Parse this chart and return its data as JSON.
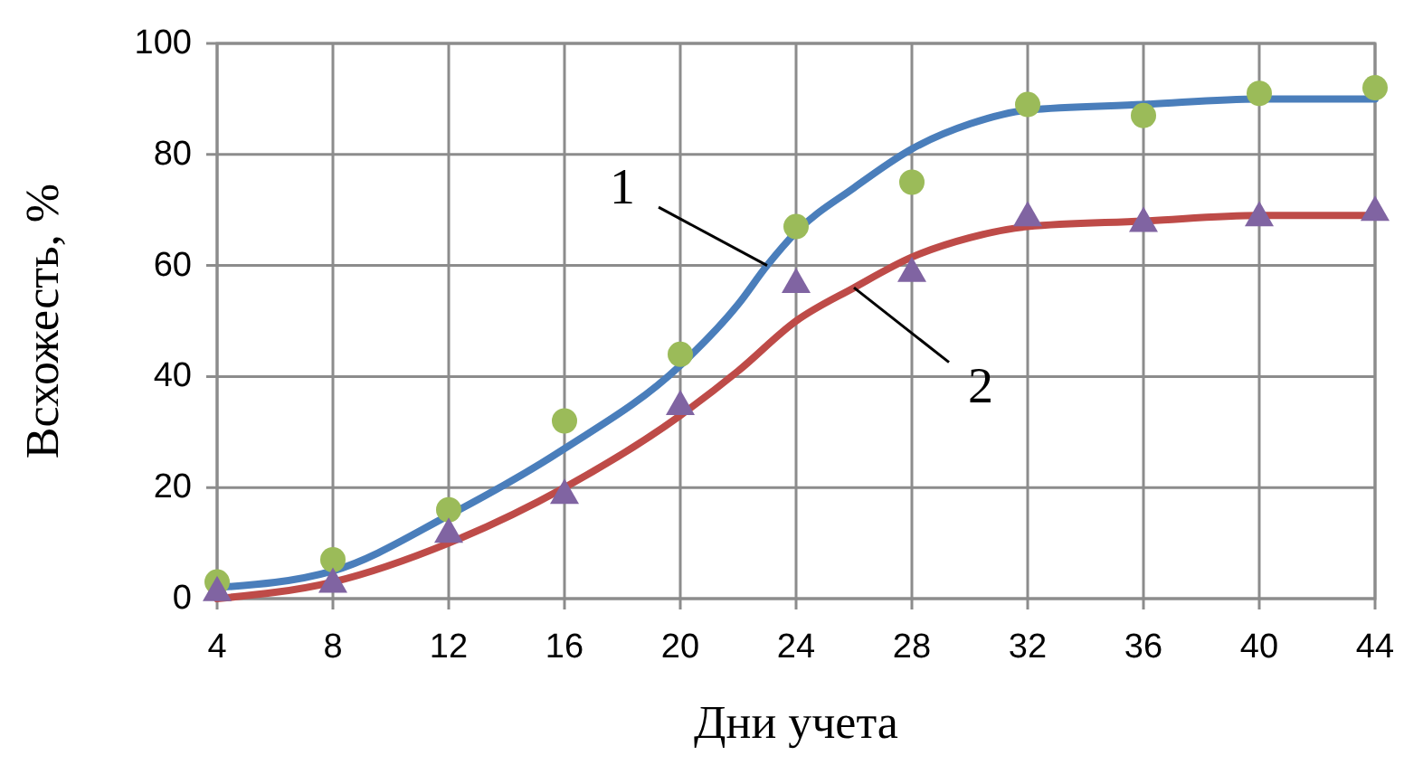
{
  "chart_data": {
    "type": "scatter",
    "xlabel": "Дни учета",
    "ylabel": "Всхожесть, %",
    "xlim": [
      4,
      44
    ],
    "xticks": [
      4,
      8,
      12,
      16,
      20,
      24,
      28,
      32,
      36,
      40,
      44
    ],
    "ylim": [
      0,
      100
    ],
    "yticks": [
      0,
      20,
      40,
      60,
      80,
      100
    ],
    "grid": true,
    "series": [
      {
        "type": "line",
        "color": "#4a7ebb",
        "marker": "none",
        "x": [
          4,
          8,
          12,
          16,
          20,
          22,
          23,
          24,
          26,
          28,
          30,
          32,
          36,
          40,
          44
        ],
        "values": [
          2,
          5,
          15,
          27,
          42,
          53,
          60,
          66,
          74,
          81,
          85.5,
          88,
          89,
          90,
          90
        ]
      },
      {
        "type": "line",
        "color": "#be4b48",
        "marker": "none",
        "x": [
          4,
          8,
          12,
          16,
          20,
          22,
          24,
          26,
          28,
          30,
          32,
          36,
          40,
          44
        ],
        "values": [
          0,
          3,
          10,
          20,
          33,
          41,
          50,
          56,
          61.5,
          65,
          67,
          68,
          69,
          69
        ]
      },
      {
        "color": "#9bbb59",
        "marker": "circle",
        "x": [
          4,
          8,
          12,
          16,
          20,
          24,
          28,
          32,
          36,
          40,
          44
        ],
        "values": [
          3,
          7,
          16,
          32,
          44,
          67,
          75,
          89,
          87,
          91,
          92
        ]
      },
      {
        "color": "#8064a2",
        "marker": "triangle",
        "x": [
          4,
          8,
          12,
          16,
          20,
          24,
          28,
          32,
          36,
          40,
          44
        ],
        "values": [
          1.5,
          3,
          12,
          19,
          35,
          57,
          59,
          69,
          68,
          69,
          70
        ]
      }
    ],
    "annotations": [
      {
        "text": "1",
        "x": 23,
        "y": 60
      },
      {
        "text": "2",
        "x": 26,
        "y": 56
      }
    ]
  }
}
